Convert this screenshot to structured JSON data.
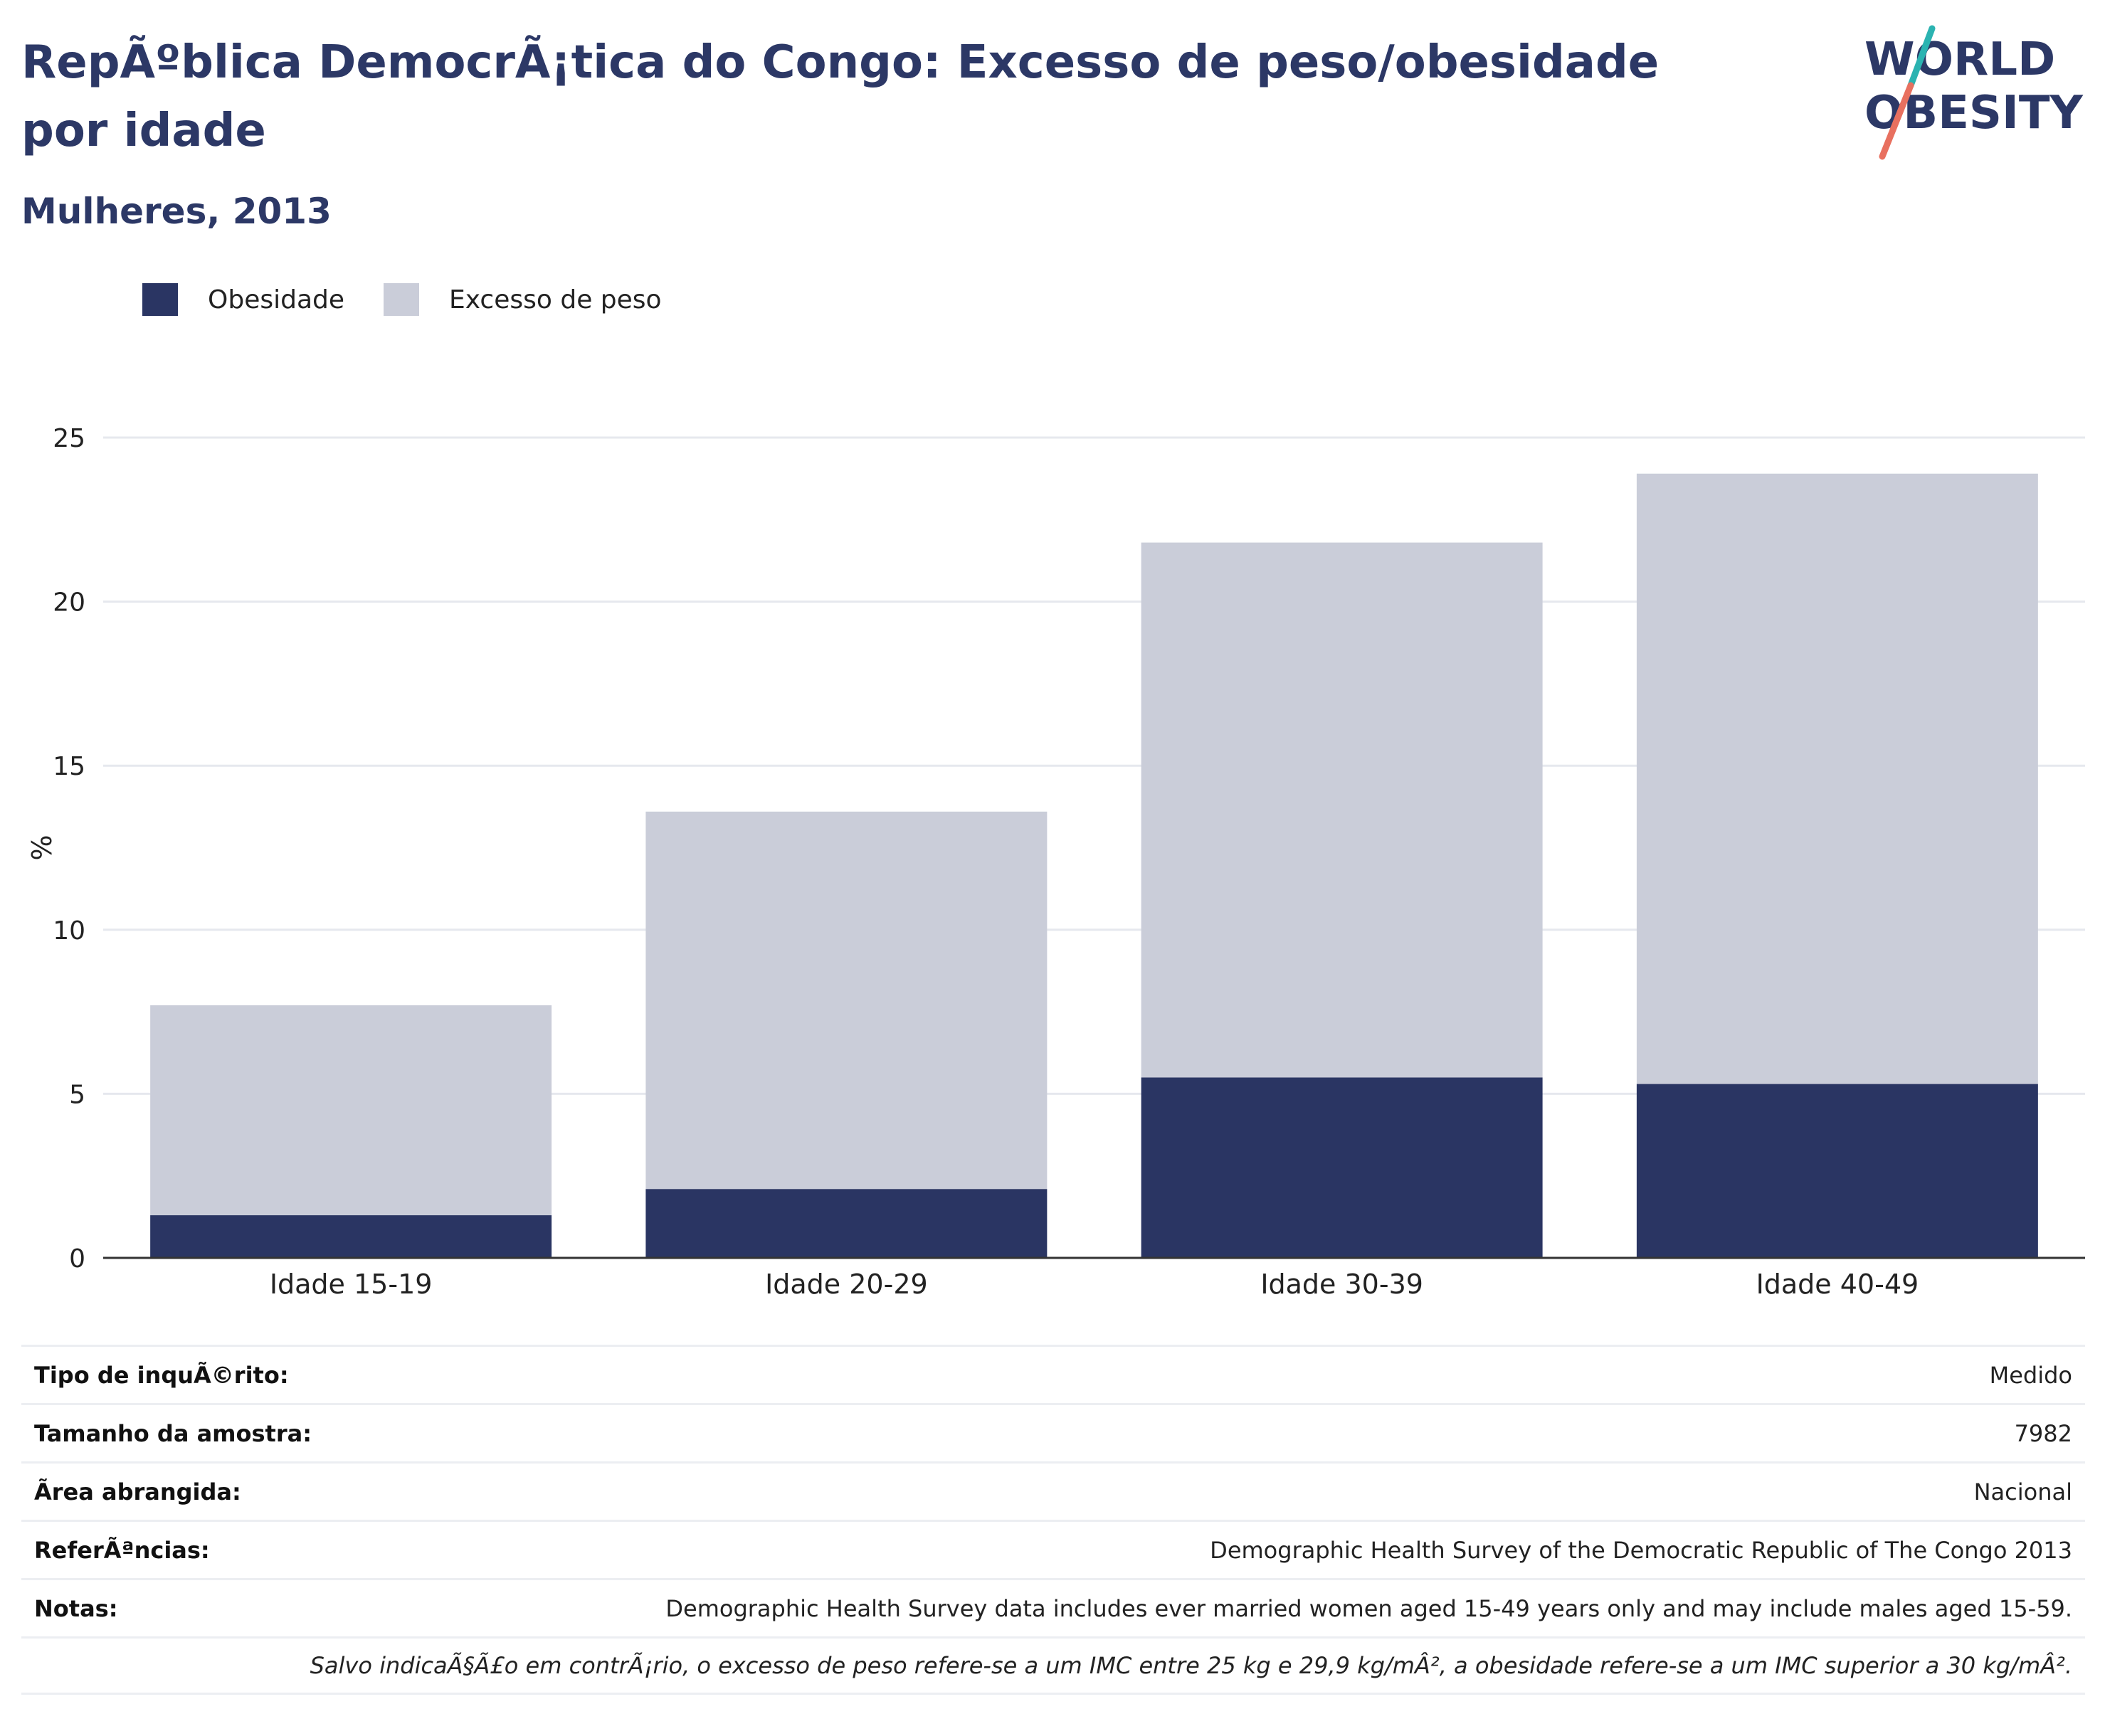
{
  "header": {
    "title": "RepÃºblica DemocrÃ¡tica do Congo: Excesso de peso/obesidade por idade",
    "subtitle": "Mulheres, 2013"
  },
  "logo": {
    "line1": "WORLD",
    "line2": "OBESITY",
    "accent_teal": "#2bb3b1",
    "accent_coral": "#e8705f"
  },
  "legend": [
    {
      "label": "Obesidade",
      "color": "#2a3563"
    },
    {
      "label": "Excesso de peso",
      "color": "#cacdd9"
    }
  ],
  "chart_data": {
    "type": "bar",
    "stacked": true,
    "categories": [
      "Idade 15-19",
      "Idade 20-29",
      "Idade 30-39",
      "Idade 40-49"
    ],
    "series": [
      {
        "name": "Obesidade",
        "values": [
          1.3,
          2.1,
          5.5,
          5.3
        ],
        "color": "#2a3563"
      },
      {
        "name": "Excesso de peso",
        "values": [
          6.4,
          11.5,
          16.3,
          18.6
        ],
        "color": "#cacdd9"
      }
    ],
    "ylabel": "%",
    "ylim": [
      0,
      25
    ],
    "yticks": [
      0,
      5,
      10,
      15,
      20,
      25
    ],
    "grid": true,
    "legend_position": "top-left"
  },
  "table": [
    {
      "key": "Tipo de inquÃ©rito:",
      "value": "Medido"
    },
    {
      "key": "Tamanho da amostra:",
      "value": "7982"
    },
    {
      "key": "Ã\u001frea abrangida:",
      "value": "Nacional"
    },
    {
      "key": "ReferÃªncias:",
      "value": "Demographic Health Survey of the Democratic Republic of The Congo 2013"
    },
    {
      "key": "Notas:",
      "value": "Demographic Health Survey data includes ever married women aged 15-49 years only and may include males aged 15-59."
    },
    {
      "key": "",
      "value": "Salvo indicaÃ§Ã£o em contrÃ¡rio, o excesso de peso refere-se a um IMC entre 25 kg e 29,9 kg/mÂ², a obesidade refere-se a um IMC superior a 30 kg/mÂ²."
    }
  ]
}
